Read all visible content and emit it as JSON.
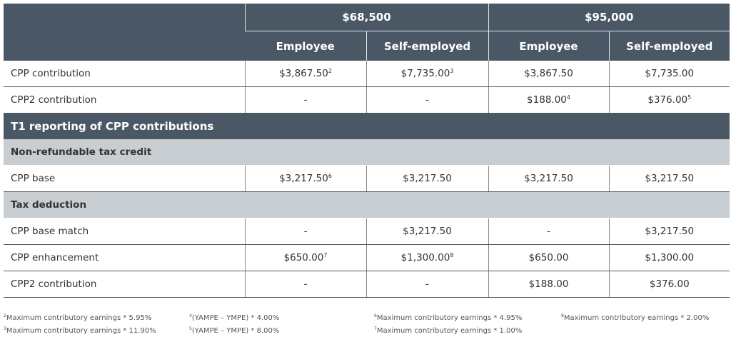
{
  "header": {
    "income_1": "$68,500",
    "income_2": "$95,000",
    "employee": "Employee",
    "self_employed": "Self-employed"
  },
  "rows_top": [
    {
      "label": "CPP contribution",
      "cells": [
        {
          "v": "$3,867.50",
          "n": "2"
        },
        {
          "v": "$7,735.00",
          "n": "3"
        },
        {
          "v": "$3,867.50",
          "n": ""
        },
        {
          "v": "$7,735.00",
          "n": ""
        }
      ]
    },
    {
      "label": "CPP2 contribution",
      "cells": [
        {
          "v": "-",
          "n": ""
        },
        {
          "v": "-",
          "n": ""
        },
        {
          "v": "$188.00",
          "n": "4"
        },
        {
          "v": "$376.00",
          "n": "5"
        }
      ]
    }
  ],
  "section": "T1 reporting of CPP contributions",
  "sub1": "Non-refundable tax credit",
  "rows_credit": [
    {
      "label": "CPP base",
      "cells": [
        {
          "v": "$3,217.50",
          "n": "6"
        },
        {
          "v": "$3,217.50",
          "n": ""
        },
        {
          "v": "$3,217.50",
          "n": ""
        },
        {
          "v": "$3,217.50",
          "n": ""
        }
      ]
    }
  ],
  "sub2": "Tax deduction",
  "rows_deduction": [
    {
      "label": "CPP base match",
      "cells": [
        {
          "v": "-",
          "n": ""
        },
        {
          "v": "$3,217.50",
          "n": ""
        },
        {
          "v": "-",
          "n": ""
        },
        {
          "v": "$3,217.50",
          "n": ""
        }
      ]
    },
    {
      "label": "CPP enhancement",
      "cells": [
        {
          "v": "$650.00",
          "n": "7"
        },
        {
          "v": "$1,300.00",
          "n": "8"
        },
        {
          "v": "$650.00",
          "n": ""
        },
        {
          "v": "$1,300.00",
          "n": ""
        }
      ]
    },
    {
      "label": "CPP2 contribution",
      "cells": [
        {
          "v": "-",
          "n": ""
        },
        {
          "v": "-",
          "n": ""
        },
        {
          "v": "$188.00",
          "n": ""
        },
        {
          "v": "$376.00",
          "n": ""
        }
      ]
    }
  ],
  "footnotes": [
    {
      "n": "2",
      "t": "Maximum contributory earnings * 5.95%"
    },
    {
      "n": "3",
      "t": "Maximum contributory earnings * 11.90%"
    },
    {
      "n": "4",
      "t": "(YAMPE – YMPE) * 4.00%"
    },
    {
      "n": "5",
      "t": "(YAMPE – YMPE) * 8.00%"
    },
    {
      "n": "6",
      "t": "Maximum contributory earnings * 4.95%"
    },
    {
      "n": "7",
      "t": "Maximum contributory earnings * 1.00%"
    },
    {
      "n": "8",
      "t": "Maximum contributory earnings * 2.00%"
    }
  ]
}
